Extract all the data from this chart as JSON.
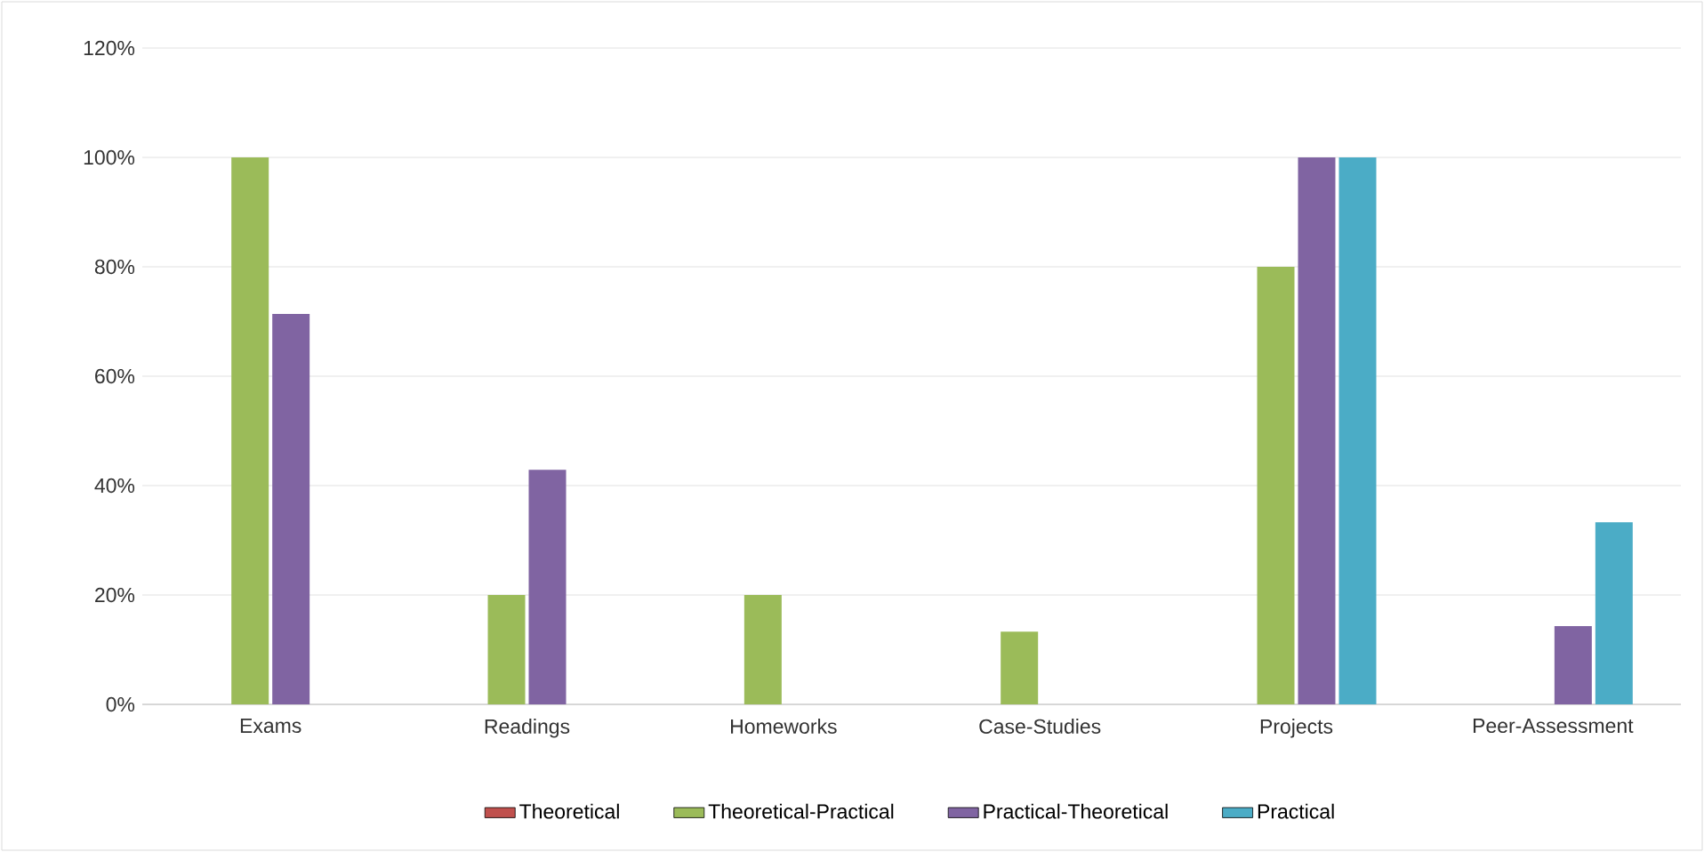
{
  "chart_data": {
    "type": "bar",
    "categories": [
      "Exams",
      "Readings",
      "Homeworks",
      "Case-Studies",
      "Projects",
      "Peer-Assessment"
    ],
    "series": [
      {
        "name": "Theoretical",
        "color": "#c0504d",
        "values": [
          0,
          0,
          0,
          0,
          0,
          0
        ]
      },
      {
        "name": "Theoretical-Practical",
        "color": "#9bbb59",
        "values": [
          100,
          20,
          20,
          13.3,
          80,
          0
        ]
      },
      {
        "name": "Practical-Theoretical",
        "color": "#8064a2",
        "values": [
          71.4,
          42.9,
          0,
          0,
          100,
          14.3
        ]
      },
      {
        "name": "Practical",
        "color": "#4bacc6",
        "values": [
          0,
          0,
          0,
          0,
          100,
          33.3
        ]
      }
    ],
    "ylim": [
      0,
      120
    ],
    "yticks": [
      {
        "value": 0,
        "label": "0%"
      },
      {
        "value": 20,
        "label": "20%"
      },
      {
        "value": 40,
        "label": "40%"
      },
      {
        "value": 60,
        "label": "60%"
      },
      {
        "value": 80,
        "label": "80%"
      },
      {
        "value": 100,
        "label": "100%"
      },
      {
        "value": 120,
        "label": "120%"
      }
    ],
    "grid": "y",
    "legend": "bottom"
  }
}
